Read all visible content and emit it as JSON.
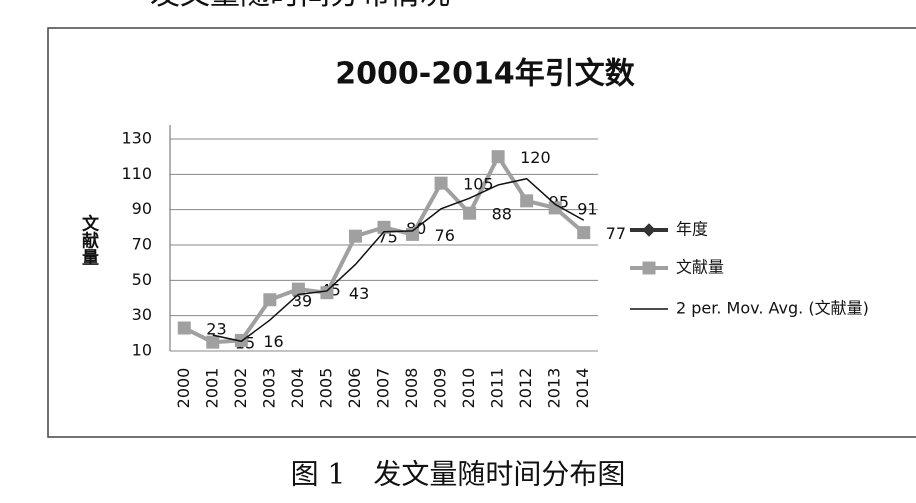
{
  "header": {
    "title": "发文量随时间分布情况"
  },
  "chart_data": {
    "type": "line",
    "title": "2000-2014年引文数",
    "y_label": "文献量",
    "categories": [
      "2000",
      "2001",
      "2002",
      "2003",
      "2004",
      "2005",
      "2006",
      "2007",
      "2008",
      "2009",
      "2010",
      "2011",
      "2012",
      "2013",
      "2014"
    ],
    "series": [
      {
        "name": "年度",
        "color": "#333333",
        "marker": "diamond",
        "values": [
          null,
          null,
          null,
          null,
          null,
          null,
          null,
          null,
          null,
          null,
          null,
          null,
          null,
          null,
          null
        ]
      },
      {
        "name": "文献量",
        "color": "#a0a0a0",
        "marker": "square",
        "values": [
          23,
          15,
          16,
          39,
          45,
          43,
          75,
          80,
          76,
          105,
          88,
          120,
          95,
          91,
          77
        ]
      }
    ],
    "trendline": {
      "name": "2 per. Mov. Avg. (文献量)",
      "series": 1,
      "period": 2,
      "color": "#111111"
    },
    "ylim": [
      10,
      130
    ],
    "yticks": [
      10,
      30,
      50,
      70,
      90,
      110,
      130
    ],
    "grid": true
  },
  "caption": "图 1　发文量随时间分布图"
}
